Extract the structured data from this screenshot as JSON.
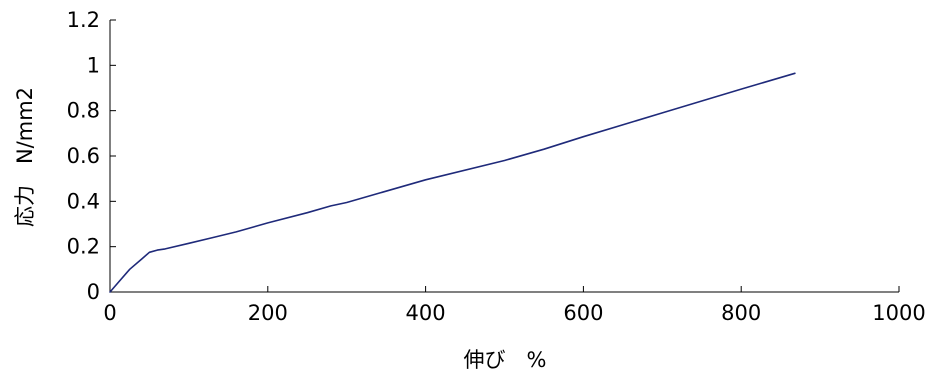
{
  "chart_data": {
    "type": "line",
    "title": "",
    "xlabel": "伸び　%",
    "ylabel": "応力　N/mm2",
    "xlim": [
      0,
      1000
    ],
    "ylim": [
      0,
      1.2
    ],
    "x_ticks": [
      0,
      200,
      400,
      600,
      800,
      1000
    ],
    "y_ticks": [
      0,
      0.2,
      0.4,
      0.6,
      0.8,
      1,
      1.2
    ],
    "x_tick_labels": [
      "0",
      "200",
      "400",
      "600",
      "800",
      "1000"
    ],
    "y_tick_labels": [
      "0",
      "0.2",
      "0.4",
      "0.6",
      "0.8",
      "1",
      "1.2"
    ],
    "grid": false,
    "legend": "none",
    "series": [
      {
        "color": "#1f2a7a",
        "x": [
          0,
          10,
          25,
          40,
          50,
          60,
          70,
          100,
          130,
          160,
          200,
          250,
          280,
          300,
          400,
          500,
          550,
          600,
          700,
          800,
          868
        ],
        "y": [
          0,
          0.04,
          0.1,
          0.145,
          0.175,
          0.185,
          0.19,
          0.215,
          0.24,
          0.265,
          0.305,
          0.35,
          0.38,
          0.395,
          0.495,
          0.58,
          0.63,
          0.685,
          0.79,
          0.895,
          0.965
        ]
      }
    ]
  }
}
